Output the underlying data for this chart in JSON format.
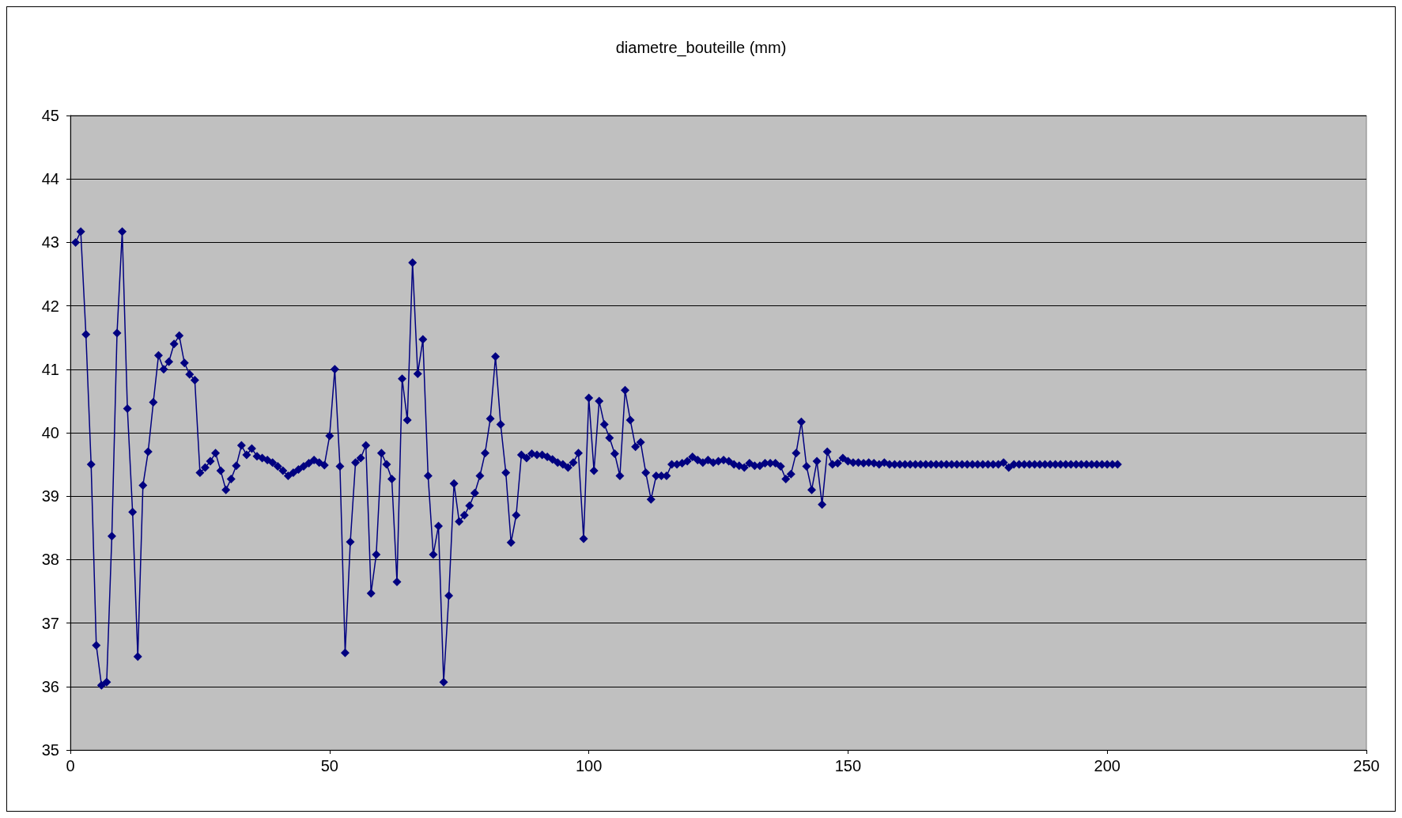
{
  "chart_data": {
    "type": "line",
    "title": "diametre_bouteille (mm)",
    "x": [
      1,
      2,
      3,
      4,
      5,
      6,
      7,
      8,
      9,
      10,
      11,
      12,
      13,
      14,
      15,
      16,
      17,
      18,
      19,
      20,
      21,
      22,
      23,
      24,
      25,
      26,
      27,
      28,
      29,
      30,
      31,
      32,
      33,
      34,
      35,
      36,
      37,
      38,
      39,
      40,
      41,
      42,
      43,
      44,
      45,
      46,
      47,
      48,
      49,
      50,
      51,
      52,
      53,
      54,
      55,
      56,
      57,
      58,
      59,
      60,
      61,
      62,
      63,
      64,
      65,
      66,
      67,
      68,
      69,
      70,
      71,
      72,
      73,
      74,
      75,
      76,
      77,
      78,
      79,
      80,
      81,
      82,
      83,
      84,
      85,
      86,
      87,
      88,
      89,
      90,
      91,
      92,
      93,
      94,
      95,
      96,
      97,
      98,
      99,
      100,
      101,
      102,
      103,
      104,
      105,
      106,
      107,
      108,
      109,
      110,
      111,
      112,
      113,
      114,
      115,
      116,
      117,
      118,
      119,
      120,
      121,
      122,
      123,
      124,
      125,
      126,
      127,
      128,
      129,
      130,
      131,
      132,
      133,
      134,
      135,
      136,
      137,
      138,
      139,
      140,
      141,
      142,
      143,
      144,
      145,
      146,
      147,
      148,
      149,
      150,
      151,
      152,
      153,
      154,
      155,
      156,
      157,
      158,
      159,
      160,
      161,
      162,
      163,
      164,
      165,
      166,
      167,
      168,
      169,
      170,
      171,
      172,
      173,
      174,
      175,
      176,
      177,
      178,
      179,
      180,
      181,
      182,
      183,
      184,
      185,
      186,
      187,
      188,
      189,
      190,
      191,
      192,
      193,
      194,
      195,
      196,
      197,
      198,
      199,
      200,
      201,
      202
    ],
    "series": [
      {
        "color": "#000080",
        "values": [
          43.0,
          43.17,
          41.55,
          39.5,
          36.65,
          36.02,
          36.07,
          38.37,
          41.57,
          43.17,
          40.38,
          38.75,
          36.47,
          39.17,
          39.7,
          40.48,
          41.22,
          41.0,
          41.12,
          41.4,
          41.53,
          41.1,
          40.92,
          40.83,
          39.37,
          39.45,
          39.55,
          39.68,
          39.4,
          39.1,
          39.27,
          39.48,
          39.8,
          39.65,
          39.75,
          39.63,
          39.6,
          39.57,
          39.53,
          39.47,
          39.4,
          39.32,
          39.37,
          39.42,
          39.47,
          39.52,
          39.57,
          39.53,
          39.49,
          39.95,
          41.0,
          39.47,
          36.53,
          38.28,
          39.53,
          39.6,
          39.8,
          37.47,
          38.08,
          39.68,
          39.5,
          39.27,
          37.65,
          40.85,
          40.2,
          42.68,
          40.93,
          41.47,
          39.32,
          38.08,
          38.53,
          36.07,
          37.43,
          39.2,
          38.6,
          38.7,
          38.85,
          39.05,
          39.32,
          39.68,
          40.22,
          41.2,
          40.13,
          39.37,
          38.27,
          38.7,
          39.65,
          39.6,
          39.67,
          39.65,
          39.65,
          39.62,
          39.58,
          39.53,
          39.5,
          39.45,
          39.53,
          39.68,
          38.33,
          40.55,
          39.4,
          40.5,
          40.13,
          39.92,
          39.67,
          39.32,
          40.67,
          40.2,
          39.78,
          39.85,
          39.37,
          38.95,
          39.32,
          39.32,
          39.32,
          39.5,
          39.5,
          39.52,
          39.55,
          39.62,
          39.57,
          39.53,
          39.57,
          39.53,
          39.55,
          39.57,
          39.55,
          39.5,
          39.48,
          39.45,
          39.52,
          39.48,
          39.48,
          39.52,
          39.52,
          39.52,
          39.47,
          39.27,
          39.35,
          39.68,
          40.17,
          39.47,
          39.1,
          39.55,
          38.87,
          39.7,
          39.5,
          39.52,
          39.6,
          39.55,
          39.53,
          39.53,
          39.52,
          39.53,
          39.52,
          39.5,
          39.53,
          39.5,
          39.5,
          39.5,
          39.5,
          39.5,
          39.5,
          39.5,
          39.5,
          39.5,
          39.5,
          39.5,
          39.5,
          39.5,
          39.5,
          39.5,
          39.5,
          39.5,
          39.5,
          39.5,
          39.5,
          39.5,
          39.5,
          39.53,
          39.45,
          39.5,
          39.5,
          39.5,
          39.5,
          39.5,
          39.5,
          39.5,
          39.5,
          39.5,
          39.5,
          39.5,
          39.5,
          39.5,
          39.5,
          39.5,
          39.5,
          39.5,
          39.5,
          39.5,
          39.5,
          39.5
        ]
      }
    ],
    "xlim": [
      0,
      250
    ],
    "xticks": [
      0,
      50,
      100,
      150,
      200,
      250
    ],
    "ylim": [
      35,
      45
    ],
    "yticks": [
      35,
      36,
      37,
      38,
      39,
      40,
      41,
      42,
      43,
      44,
      45
    ],
    "grid": "y",
    "marker": "diamond",
    "line_style": "solid"
  }
}
